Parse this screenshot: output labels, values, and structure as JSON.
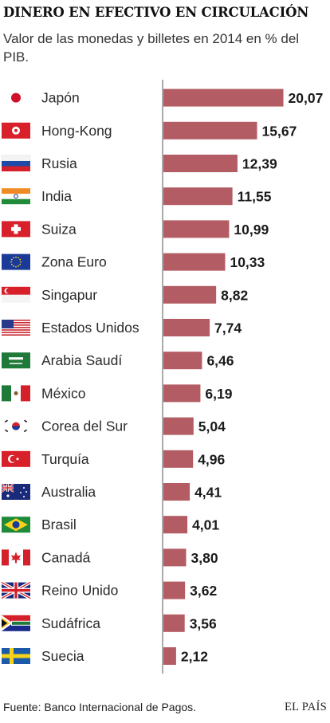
{
  "chart_data": {
    "type": "bar",
    "orientation": "horizontal",
    "title": "DINERO EN EFECTIVO EN CIRCULACIÓN",
    "subtitle": "Valor de las monedas y billetes en 2014 en % del PIB.",
    "categories": [
      "Japón",
      "Hong-Kong",
      "Rusia",
      "India",
      "Suiza",
      "Zona Euro",
      "Singapur",
      "Estados Unidos",
      "Arabia Saudí",
      "México",
      "Corea del Sur",
      "Turquía",
      "Australia",
      "Brasil",
      "Canadá",
      "Reino Unido",
      "Sudáfrica",
      "Suecia"
    ],
    "values": [
      20.07,
      15.67,
      12.39,
      11.55,
      10.99,
      10.33,
      8.82,
      7.74,
      6.46,
      6.19,
      5.04,
      4.96,
      4.41,
      4.01,
      3.8,
      3.62,
      3.56,
      2.12
    ],
    "value_labels": [
      "20,07",
      "15,67",
      "12,39",
      "11,55",
      "10,99",
      "10,33",
      "8,82",
      "7,74",
      "6,46",
      "6,19",
      "5,04",
      "4,96",
      "4,41",
      "4,01",
      "3,80",
      "3,62",
      "3,56",
      "2,12"
    ],
    "flags": [
      "japan-flag-icon",
      "hong-kong-flag-icon",
      "russia-flag-icon",
      "india-flag-icon",
      "switzerland-flag-icon",
      "eu-flag-icon",
      "singapore-flag-icon",
      "usa-flag-icon",
      "saudi-arabia-flag-icon",
      "mexico-flag-icon",
      "south-korea-flag-icon",
      "turkey-flag-icon",
      "australia-flag-icon",
      "brazil-flag-icon",
      "canada-flag-icon",
      "uk-flag-icon",
      "south-africa-flag-icon",
      "sweden-flag-icon"
    ],
    "bar_color": "#b35c63",
    "grid": false,
    "legend": "none"
  },
  "footer": {
    "source": "Fuente: Banco Internacional de Pagos.",
    "brand": "EL PAÍS"
  }
}
